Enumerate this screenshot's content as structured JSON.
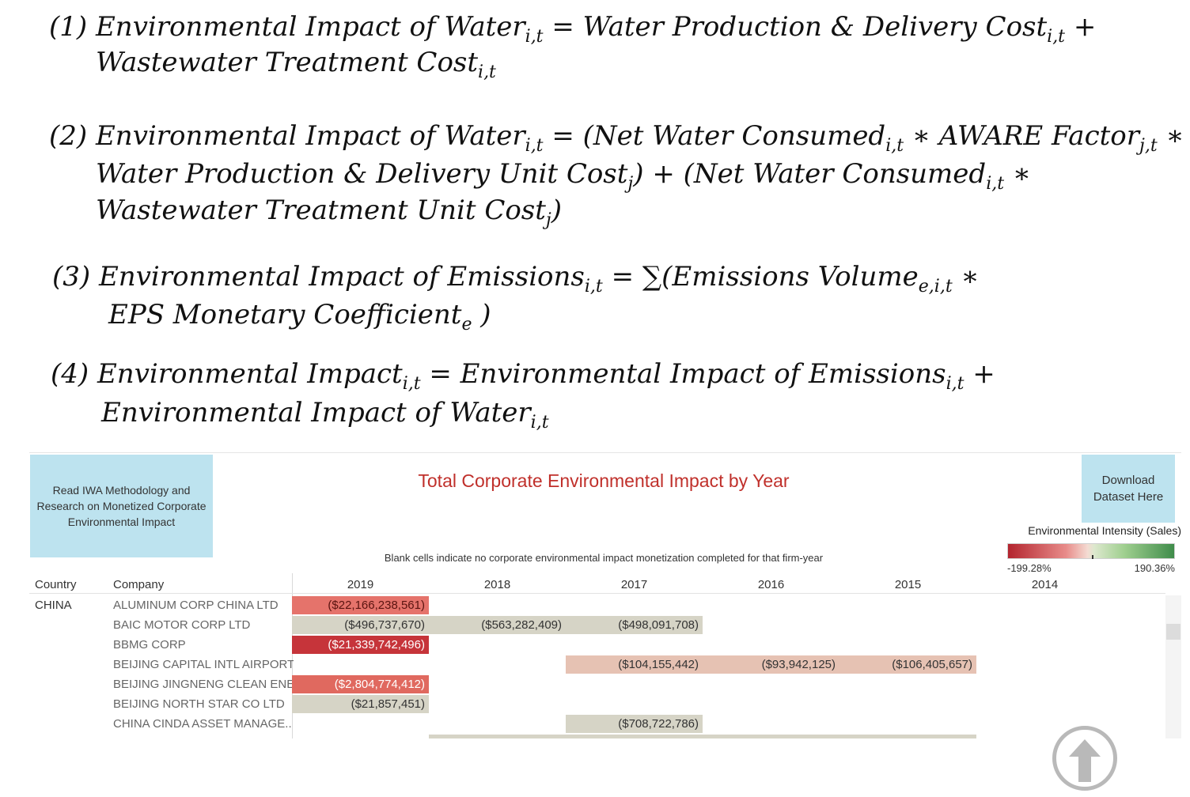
{
  "equations": {
    "eq1": {
      "num": "(1)",
      "l1_a": "Environmental Impact of Water",
      "l1_sub1": "i,t",
      "l1_b": " = Water Production & Delivery Cost",
      "l1_sub2": "i,t",
      "l1_c": " +",
      "l2_a": "Wastewater Treatment Cost",
      "l2_sub1": "i,t"
    },
    "eq2": {
      "num": "(2)",
      "l1_a": "Environmental Impact of Water",
      "l1_sub1": "i,t",
      "l1_b": " = (Net Water Consumed",
      "l1_sub2": "i,t",
      "l1_c": " ∗  AWARE Factor",
      "l1_sub3": "j,t",
      "l1_d": " ∗",
      "l2_a": "Water Production & Delivery Unit Cost",
      "l2_sub1": "j",
      "l2_b": ") + (Net Water Consumed",
      "l2_sub2": "i,t",
      "l2_c": " ∗",
      "l3_a": "Wastewater Treatment Unit Cost",
      "l3_sub1": "j",
      "l3_b": ")"
    },
    "eq3": {
      "num": "(3)",
      "l1_a": "Environmental Impact of Emissions",
      "l1_sub1": "i,t",
      "l1_b": " =  ∑(Emissions Volume",
      "l1_sub2": "e,i,t",
      "l1_c": "  ∗",
      "l2_a": "EPS Monetary Coefficient",
      "l2_sub1": "e",
      "l2_b": " )"
    },
    "eq4": {
      "num": "(4)",
      "l1_a": "Environmental Impact",
      "l1_sub1": "i,t",
      "l1_b": " = Environmental Impact of Emissions",
      "l1_sub2": "i,t",
      "l1_c": " +",
      "l2_a": "Environmental Impact of Water",
      "l2_sub1": "i,t"
    }
  },
  "dashboard": {
    "info_button": "Read IWA Methodology and Research on Monetized Corporate Environmental Impact",
    "title": "Total Corporate Environmental Impact by Year",
    "download_button": "Download Dataset Here",
    "subtitle": "Blank cells indicate no corporate environmental impact monetization completed for that firm-year",
    "legend": {
      "title": "Environmental Intensity (Sales)",
      "min": "-199.28%",
      "max": "190.36%",
      "colors": [
        "#b3242e",
        "#f4dcd3",
        "#3f8c4a"
      ]
    },
    "columns": {
      "country": "Country",
      "company": "Company",
      "years": [
        "2019",
        "2018",
        "2017",
        "2016",
        "2015",
        "2014"
      ]
    },
    "country": "CHINA",
    "rows": [
      {
        "company": "ALUMINUM CORP CHINA LTD",
        "cells": [
          "($22,166,238,561)",
          "",
          "",
          "",
          "",
          ""
        ]
      },
      {
        "company": "BAIC MOTOR CORP LTD",
        "cells": [
          "($496,737,670)",
          "($563,282,409)",
          "($498,091,708)",
          "",
          "",
          ""
        ]
      },
      {
        "company": "BBMG CORP",
        "cells": [
          "($21,339,742,496)",
          "",
          "",
          "",
          "",
          ""
        ]
      },
      {
        "company": "BEIJING CAPITAL INTL AIRPORT",
        "cells": [
          "",
          "",
          "($104,155,442)",
          "($93,942,125)",
          "($106,405,657)",
          ""
        ]
      },
      {
        "company": "BEIJING JINGNENG CLEAN ENE",
        "cells": [
          "($2,804,774,412)",
          "",
          "",
          "",
          "",
          ""
        ]
      },
      {
        "company": "BEIJING NORTH STAR CO LTD",
        "cells": [
          "($21,857,451)",
          "",
          "",
          "",
          "",
          ""
        ]
      },
      {
        "company": "CHINA CINDA ASSET MANAGE..",
        "cells": [
          "",
          "",
          "($708,722,786)",
          "",
          "",
          ""
        ]
      }
    ],
    "colors": {
      "title": "#c0302b",
      "button_bg": "#bde3ef",
      "cell_beige": "#d6d4c6",
      "cell_peach": "#e6c2b3",
      "cell_red": "#c6343a"
    }
  },
  "scroll_top_icon": "arrow-up-circle-icon"
}
